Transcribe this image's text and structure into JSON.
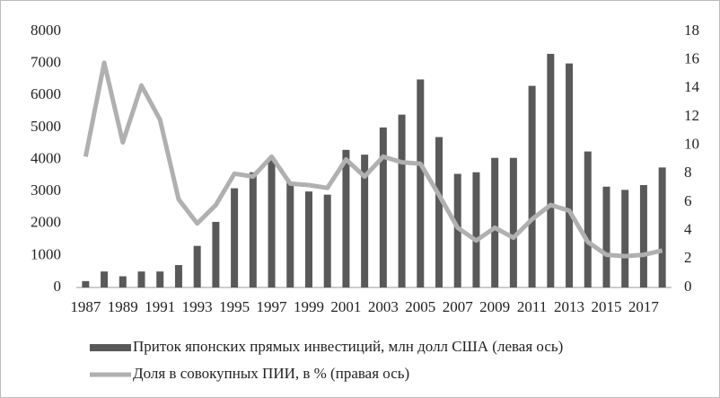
{
  "chart_data": {
    "type": "bar_line",
    "categories": [
      "1987",
      null,
      "1989",
      null,
      "1991",
      null,
      "1993",
      null,
      "1995",
      null,
      "1997",
      null,
      "1999",
      null,
      "2001",
      null,
      "2003",
      null,
      "2005",
      null,
      "2007",
      null,
      "2009",
      null,
      "2011",
      null,
      "2013",
      null,
      "2015",
      null,
      "2017",
      null
    ],
    "series": [
      {
        "name": "Приток японских прямых инвестиций, млн долл США (левая ось)",
        "color": "#595959",
        "type": "bar",
        "values": [
          200,
          500,
          350,
          500,
          500,
          700,
          1300,
          2050,
          3100,
          3600,
          4000,
          3300,
          3000,
          2900,
          4300,
          4150,
          5000,
          5400,
          6500,
          4700,
          3550,
          3600,
          4050,
          4050,
          6300,
          7300,
          7000,
          4250,
          3150,
          3050,
          3200,
          3750
        ]
      },
      {
        "name": "Доля в совокупных ПИИ, в % (правая ось)",
        "color": "#b0b0b0",
        "type": "line",
        "axis": "y2",
        "values": [
          9.2,
          15.8,
          10.2,
          14.2,
          11.8,
          6.2,
          4.5,
          5.8,
          8.0,
          7.8,
          9.2,
          7.3,
          7.2,
          7.0,
          9.0,
          7.8,
          9.2,
          8.8,
          8.7,
          6.5,
          4.2,
          3.3,
          4.2,
          3.5,
          4.8,
          5.8,
          5.4,
          3.2,
          2.3,
          2.2,
          2.3,
          2.6
        ]
      }
    ],
    "ylim": [
      0,
      8000
    ],
    "yticks": [
      0,
      1000,
      2000,
      3000,
      4000,
      5000,
      6000,
      7000,
      8000
    ],
    "y2lim": [
      0,
      18
    ],
    "y2ticks": [
      0,
      2,
      4,
      6,
      8,
      10,
      12,
      14,
      16,
      18
    ],
    "legend": "bottom"
  }
}
